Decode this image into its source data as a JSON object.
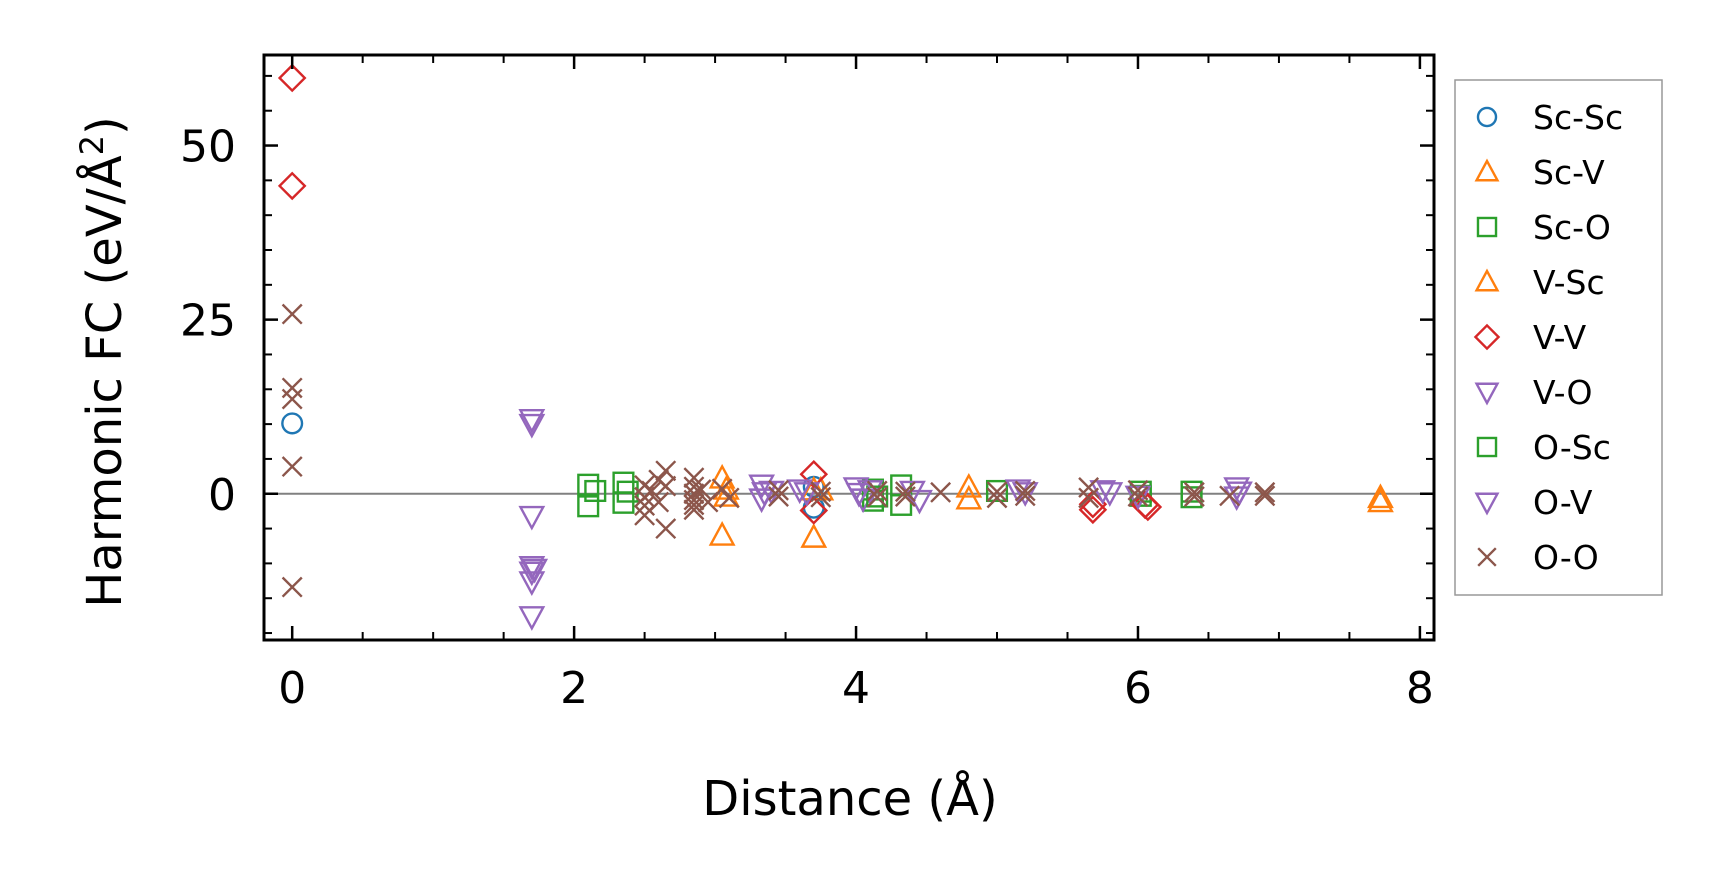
{
  "chart_data": {
    "type": "scatter",
    "xlabel": "Distance (Å)",
    "ylabel_main": "Harmonic FC (eV/Å",
    "ylabel_sup": "2",
    "ylabel_end": ")",
    "xlim": [
      -0.2,
      8.1
    ],
    "ylim": [
      -21,
      63
    ],
    "xticks": [
      0,
      2,
      4,
      6,
      8
    ],
    "xtick_labels": [
      "0",
      "2",
      "4",
      "6",
      "8"
    ],
    "yticks": [
      0,
      25,
      50
    ],
    "ytick_labels": [
      "0",
      "25",
      "50"
    ],
    "zero_line": true,
    "legend_position": "right outside",
    "series": [
      {
        "name": "Sc-Sc",
        "marker": "circle",
        "color": "#1f77b4",
        "points": [
          [
            0.0,
            10.1
          ],
          [
            3.7,
            1.0
          ],
          [
            3.7,
            -2.0
          ]
        ]
      },
      {
        "name": "Sc-V",
        "marker": "triangle-up",
        "color": "#ff7f0e",
        "points": [
          [
            3.05,
            2.2
          ],
          [
            3.05,
            -6.0
          ],
          [
            3.7,
            -6.3
          ],
          [
            3.7,
            0.5
          ],
          [
            4.8,
            0.9
          ],
          [
            4.8,
            -0.8
          ],
          [
            7.72,
            -0.6
          ],
          [
            7.72,
            -1.2
          ]
        ]
      },
      {
        "name": "Sc-O",
        "marker": "square",
        "color": "#2ca02c",
        "points": [
          [
            2.1,
            1.3
          ],
          [
            2.1,
            -1.8
          ],
          [
            2.35,
            1.6
          ],
          [
            2.35,
            -1.3
          ],
          [
            4.12,
            0.6
          ],
          [
            4.12,
            -1.0
          ],
          [
            4.32,
            1.2
          ],
          [
            4.32,
            -1.6
          ],
          [
            5.0,
            0.4
          ],
          [
            6.02,
            0.3
          ],
          [
            6.02,
            -0.3
          ],
          [
            6.38,
            0.3
          ],
          [
            6.38,
            -0.5
          ]
        ]
      },
      {
        "name": "V-Sc",
        "marker": "triangle-up",
        "color": "#ff7f0e",
        "points": [
          [
            3.08,
            0.6
          ],
          [
            3.08,
            -0.4
          ],
          [
            3.75,
            0.5
          ]
        ]
      },
      {
        "name": "V-V",
        "marker": "diamond",
        "color": "#d62728",
        "points": [
          [
            0.0,
            59.7
          ],
          [
            0.0,
            44.2
          ],
          [
            3.7,
            2.8
          ],
          [
            3.7,
            -2.4
          ],
          [
            5.68,
            -1.5
          ],
          [
            5.68,
            -2.3
          ],
          [
            6.05,
            -1.6
          ],
          [
            6.07,
            -1.9
          ]
        ]
      },
      {
        "name": "V-O",
        "marker": "triangle-down",
        "color": "#9467bd",
        "points": [
          [
            1.7,
            10.7
          ],
          [
            1.7,
            10.0
          ],
          [
            1.7,
            -3.2
          ],
          [
            1.7,
            -10.4
          ],
          [
            1.7,
            -11.2
          ],
          [
            1.7,
            -12.6
          ],
          [
            1.7,
            -17.6
          ],
          [
            3.33,
            1.3
          ],
          [
            3.33,
            -0.7
          ],
          [
            3.4,
            0.4
          ],
          [
            3.6,
            0.6
          ],
          [
            4.0,
            0.9
          ],
          [
            4.05,
            -0.7
          ],
          [
            4.1,
            0.5
          ],
          [
            4.4,
            0.4
          ],
          [
            4.45,
            -0.9
          ],
          [
            5.15,
            0.6
          ],
          [
            5.75,
            0.5
          ],
          [
            6.0,
            -0.3
          ],
          [
            6.7,
            0.9
          ],
          [
            6.7,
            -0.4
          ]
        ]
      },
      {
        "name": "O-Sc",
        "marker": "square",
        "color": "#2ca02c",
        "points": [
          [
            2.15,
            0.4
          ],
          [
            2.38,
            0.3
          ],
          [
            4.15,
            -0.4
          ]
        ]
      },
      {
        "name": "O-V",
        "marker": "triangle-down",
        "color": "#9467bd",
        "points": [
          [
            1.72,
            -10.8
          ],
          [
            3.35,
            0.2
          ],
          [
            3.65,
            0.2
          ],
          [
            4.02,
            0.1
          ],
          [
            5.2,
            0.2
          ],
          [
            5.8,
            0.2
          ],
          [
            6.72,
            0.3
          ]
        ]
      },
      {
        "name": "O-O",
        "marker": "x",
        "color": "#8c564b",
        "points": [
          [
            0.0,
            25.8
          ],
          [
            0.0,
            15.2
          ],
          [
            0.0,
            13.6
          ],
          [
            0.0,
            3.9
          ],
          [
            0.0,
            -13.4
          ],
          [
            2.5,
            1.2
          ],
          [
            2.5,
            -0.5
          ],
          [
            2.5,
            -1.7
          ],
          [
            2.5,
            -3.1
          ],
          [
            2.55,
            0.4
          ],
          [
            2.6,
            2.0
          ],
          [
            2.6,
            -1.2
          ],
          [
            2.65,
            3.3
          ],
          [
            2.65,
            -5.0
          ],
          [
            2.65,
            1.1
          ],
          [
            2.85,
            2.3
          ],
          [
            2.85,
            1.0
          ],
          [
            2.85,
            0.0
          ],
          [
            2.85,
            -0.9
          ],
          [
            2.85,
            -1.6
          ],
          [
            2.85,
            -2.3
          ],
          [
            2.9,
            0.6
          ],
          [
            2.95,
            -1.2
          ],
          [
            3.05,
            0.7
          ],
          [
            3.1,
            -0.6
          ],
          [
            3.45,
            0.5
          ],
          [
            3.45,
            -0.4
          ],
          [
            3.75,
            0.3
          ],
          [
            3.75,
            -0.5
          ],
          [
            4.15,
            0.4
          ],
          [
            4.15,
            -0.5
          ],
          [
            4.35,
            0.3
          ],
          [
            4.35,
            -0.4
          ],
          [
            4.6,
            0.2
          ],
          [
            5.0,
            0.3
          ],
          [
            5.0,
            -0.6
          ],
          [
            5.2,
            0.4
          ],
          [
            5.2,
            -0.3
          ],
          [
            5.65,
            0.9
          ],
          [
            5.65,
            -0.6
          ],
          [
            6.0,
            0.5
          ],
          [
            6.0,
            -0.4
          ],
          [
            6.4,
            0.2
          ],
          [
            6.4,
            -0.4
          ],
          [
            6.65,
            -0.3
          ],
          [
            6.9,
            0.2
          ],
          [
            6.9,
            -0.3
          ]
        ]
      }
    ]
  }
}
